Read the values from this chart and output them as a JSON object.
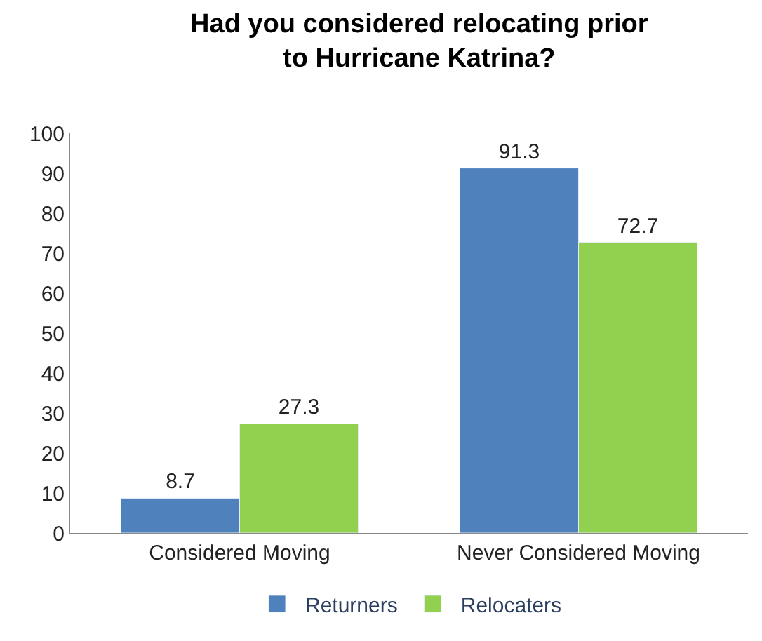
{
  "chart_data": {
    "type": "bar",
    "title": "Had you considered relocating prior\nto Hurricane Katrina?",
    "categories": [
      "Considered Moving",
      "Never Considered Moving"
    ],
    "series": [
      {
        "name": "Returners",
        "color": "#4f81bd",
        "values": [
          8.7,
          91.3
        ]
      },
      {
        "name": "Relocaters",
        "color": "#92d050",
        "values": [
          27.3,
          72.7
        ]
      }
    ],
    "ylim": [
      0,
      100
    ],
    "yticks": [
      0,
      10,
      20,
      30,
      40,
      50,
      60,
      70,
      80,
      90,
      100
    ],
    "legend": "bottom",
    "data_labels": true
  }
}
